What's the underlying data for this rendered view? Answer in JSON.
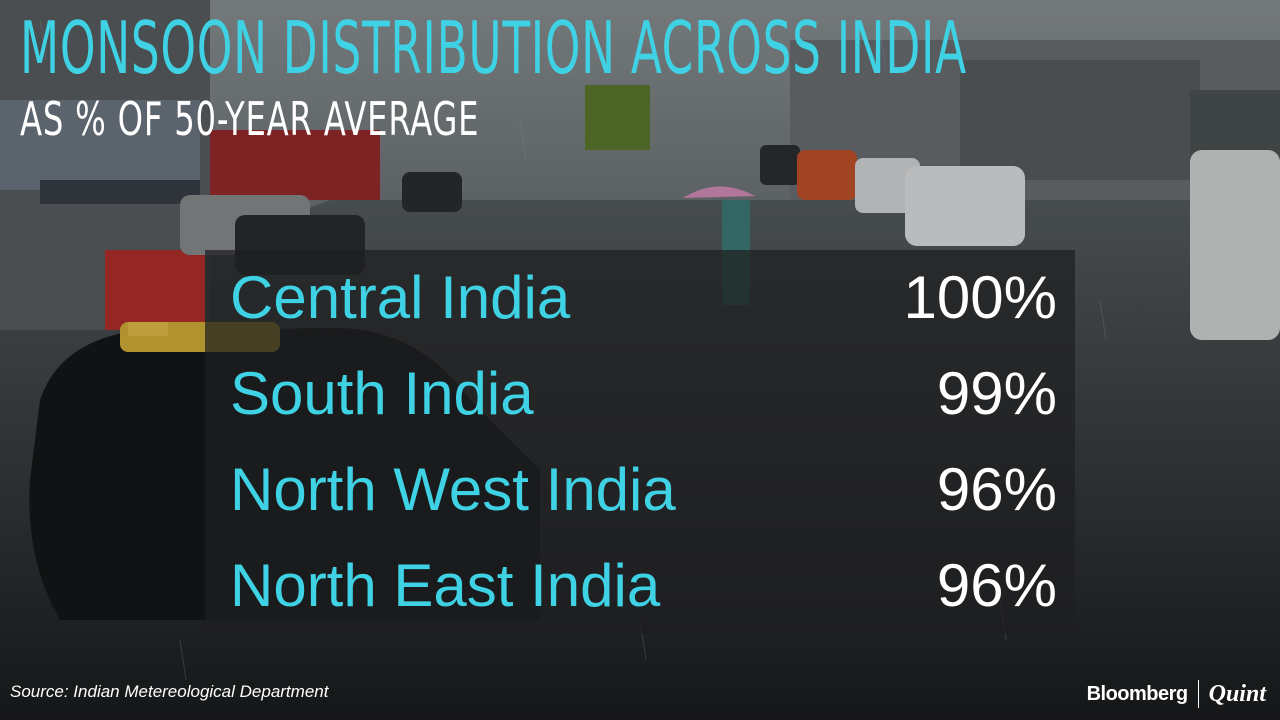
{
  "title": "MONSOON DISTRIBUTION ACROSS INDIA",
  "subtitle": "AS % OF 50-YEAR AVERAGE",
  "chart_data": {
    "type": "table",
    "title": "MONSOON DISTRIBUTION ACROSS INDIA",
    "subtitle": "AS % OF 50-YEAR AVERAGE",
    "rows": [
      {
        "region": "Central India",
        "value": 100,
        "label": "100%"
      },
      {
        "region": "South India",
        "value": 99,
        "label": "99%"
      },
      {
        "region": "North West India",
        "value": 96,
        "label": "96%"
      },
      {
        "region": "North East India",
        "value": 96,
        "label": "96%"
      }
    ]
  },
  "source": "Source: Indian Metereological Department",
  "brand": {
    "name": "Bloomberg",
    "suffix": "Quint"
  },
  "colors": {
    "accent": "#3fd2e4",
    "value_text": "#ffffff",
    "panel": "#1e1e20"
  }
}
